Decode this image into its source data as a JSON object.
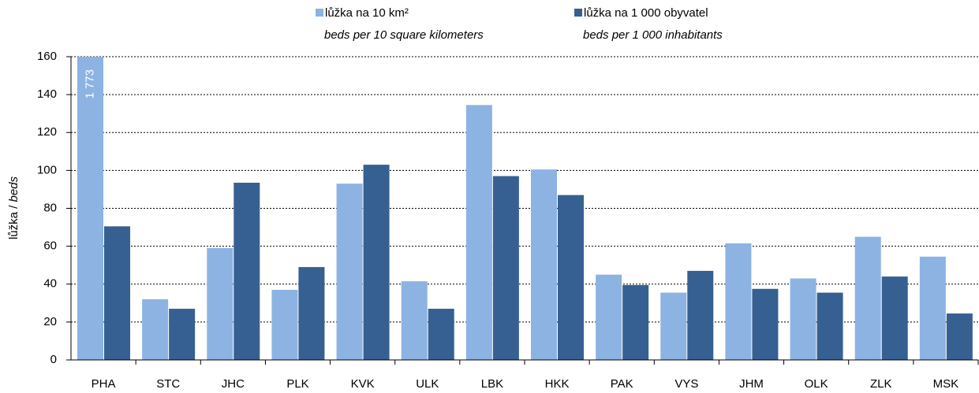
{
  "chart_data": {
    "type": "bar",
    "categories": [
      "PHA",
      "STC",
      "JHC",
      "PLK",
      "KVK",
      "ULK",
      "LBK",
      "HKK",
      "PAK",
      "VYS",
      "JHM",
      "OLK",
      "ZLK",
      "MSK"
    ],
    "series": [
      {
        "name": "lůžka na 10 km²",
        "name_en": "beds per 10 square kilometers",
        "color": "#8db3e2",
        "values": [
          1773,
          32,
          59,
          37,
          93,
          41.5,
          134.5,
          100.5,
          45,
          35.5,
          61.5,
          43,
          65,
          54.5
        ],
        "value_labels": [
          "1 773",
          null,
          null,
          null,
          null,
          null,
          null,
          null,
          null,
          null,
          null,
          null,
          null,
          null
        ]
      },
      {
        "name": "lůžka na 1 000 obyvatel",
        "name_en": "beds per 1 000 inhabitants",
        "color": "#366092",
        "values": [
          70.5,
          27,
          93.5,
          49,
          103,
          27,
          97,
          87,
          39.5,
          47,
          37.5,
          35.5,
          44,
          24.5
        ]
      }
    ],
    "ylabel": "lůžka /",
    "ylabel_en": "beds",
    "ylim": [
      0,
      160
    ],
    "yticks": [
      0,
      20,
      40,
      60,
      80,
      100,
      120,
      140,
      160
    ],
    "grid": true
  }
}
